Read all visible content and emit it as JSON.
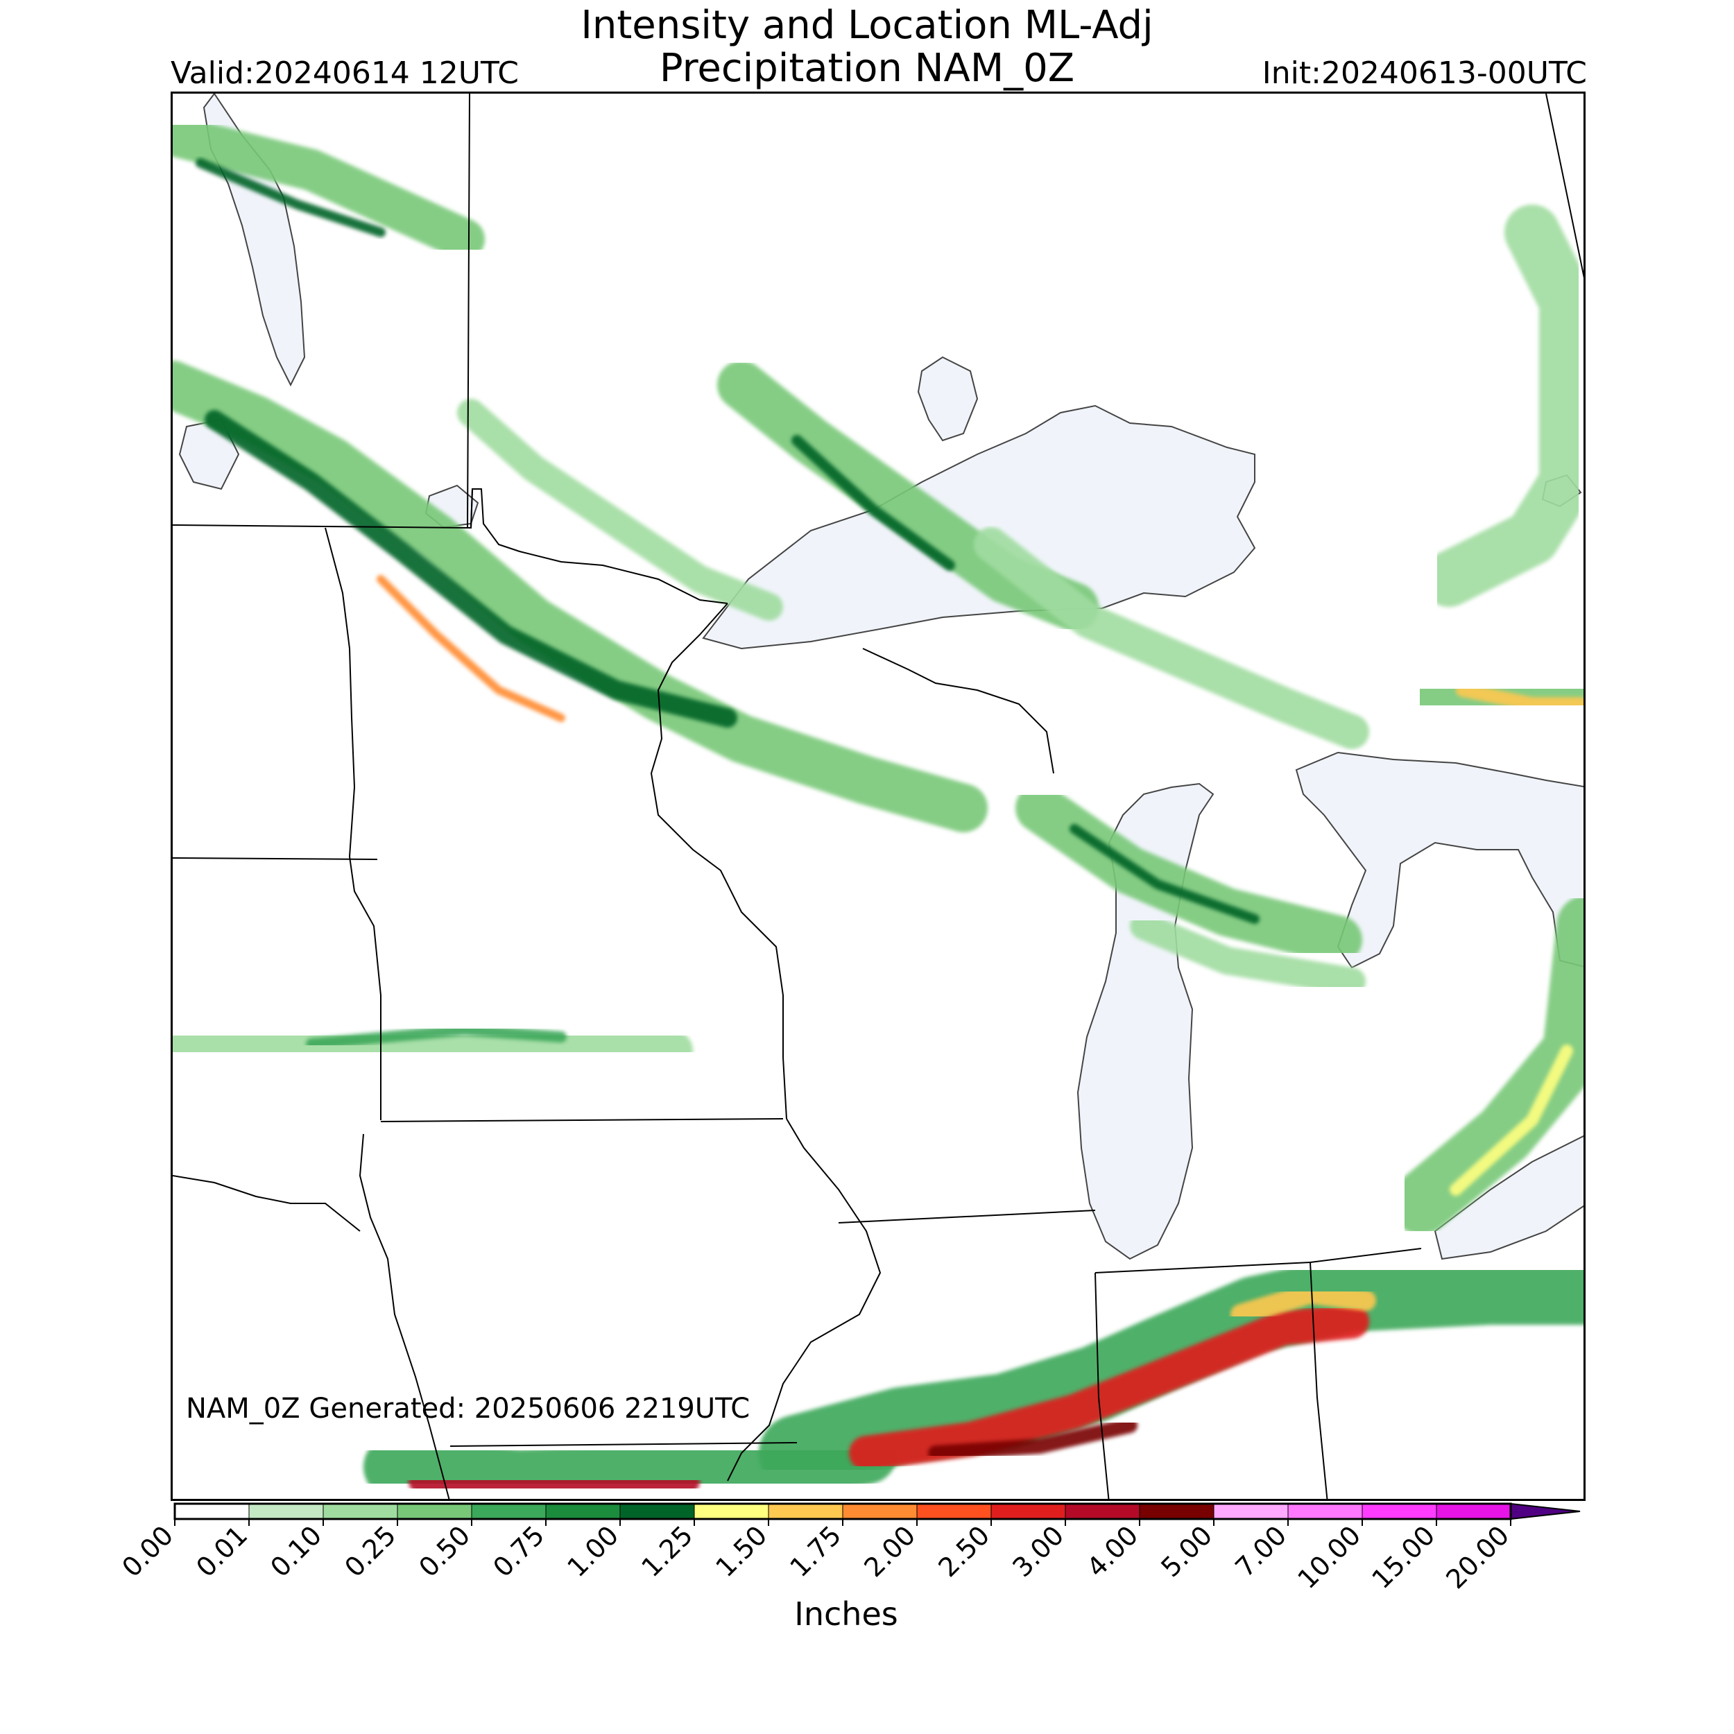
{
  "title": {
    "line1": "Intensity and Location ML-Adj",
    "line2": "Precipitation NAM_0Z"
  },
  "valid": "Valid:20240614 12UTC",
  "init": "Init:20240613-00UTC",
  "generated": "NAM_0Z Generated: 20250606 2219UTC",
  "colorbar": {
    "unit_label": "Inches",
    "ticks": [
      "0.00",
      "0.01",
      "0.10",
      "0.25",
      "0.50",
      "0.75",
      "1.00",
      "1.25",
      "1.50",
      "1.75",
      "2.00",
      "2.50",
      "3.00",
      "4.00",
      "5.00",
      "7.00",
      "10.00",
      "15.00",
      "20.00"
    ],
    "colors": [
      "#ffffff",
      "#c4e8c4",
      "#a0dca0",
      "#78c878",
      "#3ca85a",
      "#1a8c3c",
      "#006428",
      "#ffff80",
      "#ffc850",
      "#ff8c32",
      "#ff5020",
      "#e01e1e",
      "#b40a28",
      "#780000",
      "#ffaaff",
      "#ff78ff",
      "#ff3cff",
      "#e614e6",
      "#b400d2",
      "#7800b4"
    ],
    "extend_color": "#500082"
  },
  "map_colors": {
    "water": "#f0f4fa",
    "border": "#000000"
  }
}
